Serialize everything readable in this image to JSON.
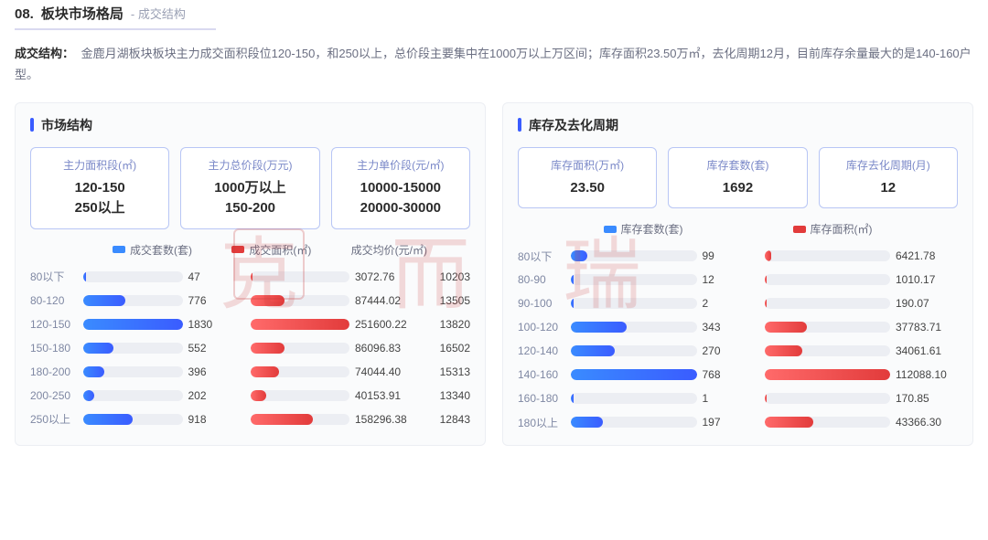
{
  "header": {
    "number": "08.",
    "title": "板块市场格局",
    "sub": "- 成交结构",
    "underline_color": "#d9d9f0"
  },
  "description": {
    "label": "成交结构：",
    "text": "金鹿月湖板块板块主力成交面积段位120-150，和250以上，总价段主要集中在1000万以上万区间；库存面积23.50万㎡，去化周期12月，目前库存余量最大的是140-160户型。"
  },
  "left_panel": {
    "title": "市场结构",
    "stat_boxes": [
      {
        "label": "主力面积段(㎡)",
        "value1": "120-150",
        "value2": "250以上"
      },
      {
        "label": "主力总价段(万元)",
        "value1": "1000万以上",
        "value2": "150-200"
      },
      {
        "label": "主力单价段(元/㎡)",
        "value1": "10000-15000",
        "value2": "20000-30000"
      }
    ],
    "legend": {
      "a": {
        "label": "成交套数(套)",
        "color": "#3a8bff"
      },
      "b": {
        "label": "成交面积(㎡)",
        "color": "#e23b3b"
      },
      "c": {
        "label": "成交均价(元/㎡)",
        "color": null
      }
    },
    "bar_colors": {
      "blue": "#3a8bff",
      "red": "#e23b3b",
      "track": "#eceef3"
    },
    "max": {
      "count": 1830,
      "area": 251600.22
    },
    "rows": [
      {
        "range": "80以下",
        "count": 47,
        "area": 3072.76,
        "price": 10203
      },
      {
        "range": "80-120",
        "count": 776,
        "area": 87444.02,
        "price": 13505
      },
      {
        "range": "120-150",
        "count": 1830,
        "area": 251600.22,
        "price": 13820
      },
      {
        "range": "150-180",
        "count": 552,
        "area": 86096.83,
        "price": 16502
      },
      {
        "range": "180-200",
        "count": 396,
        "area": 74044.4,
        "price": 15313
      },
      {
        "range": "200-250",
        "count": 202,
        "area": 40153.91,
        "price": 13340
      },
      {
        "range": "250以上",
        "count": 918,
        "area": 158296.38,
        "price": 12843
      }
    ]
  },
  "right_panel": {
    "title": "库存及去化周期",
    "stat_boxes": [
      {
        "label": "库存面积(万㎡)",
        "value1": "23.50"
      },
      {
        "label": "库存套数(套)",
        "value1": "1692"
      },
      {
        "label": "库存去化周期(月)",
        "value1": "12"
      }
    ],
    "legend": {
      "a": {
        "label": "库存套数(套)",
        "color": "#3a8bff"
      },
      "b": {
        "label": "库存面积(㎡)",
        "color": "#e23b3b"
      }
    },
    "bar_colors": {
      "blue": "#3a8bff",
      "red": "#e23b3b",
      "track": "#eceef3"
    },
    "max": {
      "count": 768,
      "area": 112088.1
    },
    "rows": [
      {
        "range": "80以下",
        "count": 99,
        "area": 6421.78
      },
      {
        "range": "80-90",
        "count": 12,
        "area": 1010.17
      },
      {
        "range": "90-100",
        "count": 2,
        "area": 190.07
      },
      {
        "range": "100-120",
        "count": 343,
        "area": 37783.71
      },
      {
        "range": "120-140",
        "count": 270,
        "area": 34061.61
      },
      {
        "range": "140-160",
        "count": 768,
        "area": 112088.1
      },
      {
        "range": "160-180",
        "count": 1,
        "area": 170.85
      },
      {
        "range": "180以上",
        "count": 197,
        "area": 43366.3
      }
    ]
  },
  "watermark": {
    "text": "克 而 瑞",
    "color": "rgba(200,60,60,0.18)"
  }
}
